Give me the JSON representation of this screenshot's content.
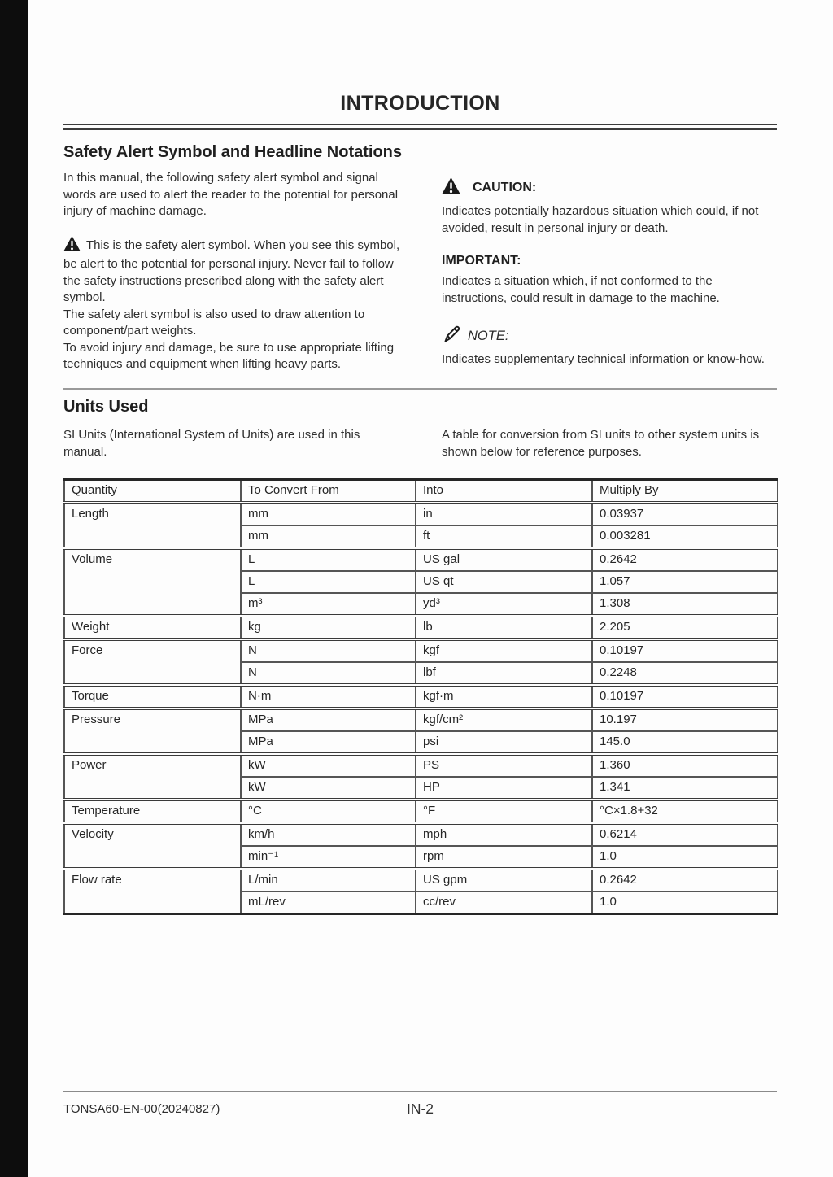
{
  "page": {
    "title": "INTRODUCTION",
    "footer": {
      "doc_code": "TONSA60-EN-00(20240827)",
      "page_number": "IN-2"
    }
  },
  "icons": {
    "safety_alert": "triangle-exclamation",
    "note": "pencil"
  },
  "safety_section": {
    "heading": "Safety Alert Symbol and Headline Notations",
    "intro_paragraph": "In this manual, the following safety alert symbol and signal words are used to alert the reader to the potential for personal injury of machine damage.",
    "alert_paragraphs": [
      "This is the safety alert symbol. When you see this symbol, be alert to the potential for personal injury. Never fail to follow the safety instructions prescribed along with the safety alert symbol.",
      "The safety alert symbol is also used to draw attention to component/part weights.",
      "To avoid injury and damage, be sure to use appropriate lifting techniques and equipment when lifting heavy parts."
    ],
    "caution": {
      "label": "CAUTION:",
      "text": "Indicates potentially hazardous situation which could, if not avoided, result in personal injury or death."
    },
    "important": {
      "label": "IMPORTANT:",
      "text": "Indicates a situation which, if not conformed to the instructions, could result in damage to the machine."
    },
    "note": {
      "label": "NOTE:",
      "text": "Indicates supplementary technical information or know-how."
    }
  },
  "units_section": {
    "heading": "Units Used",
    "left_text": "SI Units (International System of Units) are used in this manual.",
    "right_text": "A table for conversion from SI units to other system units is shown below for reference purposes."
  },
  "conversion_table": {
    "headers": [
      "Quantity",
      "To Convert From",
      "Into",
      "Multiply By"
    ],
    "groups": [
      {
        "quantity": "Length",
        "rows": [
          [
            "mm",
            "in",
            "0.03937"
          ],
          [
            "mm",
            "ft",
            "0.003281"
          ]
        ]
      },
      {
        "quantity": "Volume",
        "rows": [
          [
            "L",
            "US gal",
            "0.2642"
          ],
          [
            "L",
            "US qt",
            "1.057"
          ],
          [
            "m³",
            "yd³",
            "1.308"
          ]
        ]
      },
      {
        "quantity": "Weight",
        "rows": [
          [
            "kg",
            "lb",
            "2.205"
          ]
        ]
      },
      {
        "quantity": "Force",
        "rows": [
          [
            "N",
            "kgf",
            "0.10197"
          ],
          [
            "N",
            "lbf",
            "0.2248"
          ]
        ]
      },
      {
        "quantity": "Torque",
        "rows": [
          [
            "N·m",
            "kgf·m",
            "0.10197"
          ]
        ]
      },
      {
        "quantity": "Pressure",
        "rows": [
          [
            "MPa",
            "kgf/cm²",
            "10.197"
          ],
          [
            "MPa",
            "psi",
            "145.0"
          ]
        ]
      },
      {
        "quantity": "Power",
        "rows": [
          [
            "kW",
            "PS",
            "1.360"
          ],
          [
            "kW",
            "HP",
            "1.341"
          ]
        ]
      },
      {
        "quantity": "Temperature",
        "rows": [
          [
            "°C",
            "°F",
            "°C×1.8+32"
          ]
        ]
      },
      {
        "quantity": "Velocity",
        "rows": [
          [
            "km/h",
            "mph",
            "0.6214"
          ],
          [
            "min⁻¹",
            "rpm",
            "1.0"
          ]
        ]
      },
      {
        "quantity": "Flow rate",
        "rows": [
          [
            "L/min",
            "US gpm",
            "0.2642"
          ],
          [
            "mL/rev",
            "cc/rev",
            "1.0"
          ]
        ]
      }
    ]
  }
}
